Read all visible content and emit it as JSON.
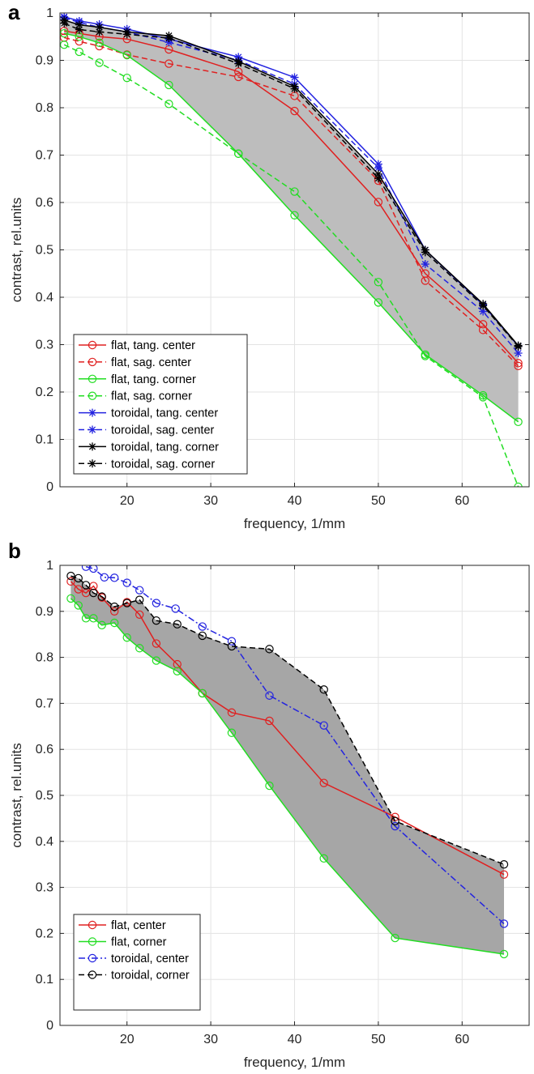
{
  "chart_data": [
    {
      "panel_label": "a",
      "type": "line",
      "xlabel": "frequency, 1/mm",
      "ylabel": "contrast, rel.units",
      "xlim": [
        12,
        68
      ],
      "ylim": [
        0,
        1
      ],
      "xticks": [
        20,
        30,
        40,
        50,
        60
      ],
      "yticks": [
        0,
        0.1,
        0.2,
        0.3,
        0.4,
        0.5,
        0.6,
        0.7,
        0.8,
        0.9,
        1
      ],
      "ytick_labels": [
        "0",
        "0.1",
        "0.2",
        "0.3",
        "0.4",
        "0.5",
        "0.6",
        "0.7",
        "0.8",
        "0.9",
        "1"
      ],
      "grid": true,
      "legend_position": "bottom-left",
      "shaded_region": {
        "upper": "toroidal, tang. corner",
        "lower": "flat, tang. corner",
        "color": "#bdbdbd"
      },
      "x": [
        12.5,
        14.3,
        16.7,
        20,
        25,
        33.3,
        40,
        50,
        55.6,
        62.5,
        66.7
      ],
      "series": [
        {
          "name": "flat, tang. center",
          "color": "#e02020",
          "dash": "solid",
          "marker": "circle",
          "values": [
            0.962,
            0.957,
            0.95,
            0.945,
            0.923,
            0.876,
            0.793,
            0.601,
            0.45,
            0.343,
            0.261
          ]
        },
        {
          "name": "flat, sag. center",
          "color": "#e02020",
          "dash": "dashed",
          "marker": "circle",
          "values": [
            0.948,
            0.94,
            0.93,
            0.912,
            0.893,
            0.865,
            0.825,
            0.646,
            0.435,
            0.331,
            0.255
          ]
        },
        {
          "name": "flat, tang. corner",
          "color": "#22dd22",
          "dash": "solid",
          "marker": "circle",
          "values": [
            0.957,
            0.95,
            0.937,
            0.911,
            0.848,
            0.703,
            0.573,
            0.389,
            0.279,
            0.193,
            0.137
          ]
        },
        {
          "name": "flat, sag. corner",
          "color": "#22dd22",
          "dash": "dashed",
          "marker": "circle",
          "values": [
            0.933,
            0.918,
            0.895,
            0.863,
            0.808,
            0.703,
            0.623,
            0.432,
            0.276,
            0.189,
            0.0
          ]
        },
        {
          "name": "toroidal, tang. center",
          "color": "#2323e0",
          "dash": "solid",
          "marker": "star",
          "values": [
            0.992,
            0.983,
            0.976,
            0.966,
            0.945,
            0.907,
            0.864,
            0.681,
            0.5,
            0.384,
            0.297
          ]
        },
        {
          "name": "toroidal, sag. center",
          "color": "#2323e0",
          "dash": "dashed",
          "marker": "star",
          "values": [
            0.99,
            0.98,
            0.97,
            0.96,
            0.938,
            0.9,
            0.85,
            0.673,
            0.47,
            0.37,
            0.282
          ]
        },
        {
          "name": "toroidal, tang. corner",
          "color": "#000000",
          "dash": "solid",
          "marker": "star",
          "values": [
            0.985,
            0.975,
            0.97,
            0.96,
            0.952,
            0.898,
            0.845,
            0.66,
            0.5,
            0.386,
            0.298
          ]
        },
        {
          "name": "toroidal, sag. corner",
          "color": "#000000",
          "dash": "dashed",
          "marker": "star",
          "values": [
            0.978,
            0.965,
            0.96,
            0.955,
            0.947,
            0.893,
            0.84,
            0.651,
            0.495,
            0.382,
            0.296
          ]
        }
      ]
    },
    {
      "panel_label": "b",
      "type": "line",
      "xlabel": "frequency, 1/mm",
      "ylabel": "contrast, rel.units",
      "xlim": [
        12,
        68
      ],
      "ylim": [
        0,
        1
      ],
      "xticks": [
        20,
        30,
        40,
        50,
        60
      ],
      "yticks": [
        0,
        0.1,
        0.2,
        0.3,
        0.4,
        0.5,
        0.6,
        0.7,
        0.8,
        0.9,
        1
      ],
      "ytick_labels": [
        "0",
        "0.1",
        "0.2",
        "0.3",
        "0.4",
        "0.5",
        "0.6",
        "0.7",
        "0.8",
        "0.9",
        "1"
      ],
      "grid": true,
      "legend_position": "bottom-left",
      "shaded_region": {
        "upper": "toroidal, corner",
        "lower": "flat, corner",
        "color": "#a6a6a6"
      },
      "series": [
        {
          "name": "flat, center",
          "color": "#e02020",
          "dash": "solid",
          "marker": "circle",
          "x": [
            13.3,
            14.2,
            15.1,
            16,
            17,
            18.5,
            20,
            21.5,
            23.5,
            26,
            29,
            32.5,
            37,
            43.5,
            52,
            65
          ],
          "values": [
            0.965,
            0.948,
            0.94,
            0.955,
            0.93,
            0.9,
            0.92,
            0.893,
            0.83,
            0.785,
            0.722,
            0.68,
            0.662,
            0.527,
            0.453,
            0.328
          ]
        },
        {
          "name": "flat, corner",
          "color": "#22dd22",
          "dash": "solid",
          "marker": "circle",
          "x": [
            13.3,
            14.2,
            15.1,
            16,
            17,
            18.5,
            20,
            21.5,
            23.5,
            26,
            29,
            32.5,
            37,
            43.5,
            52,
            65
          ],
          "values": [
            0.928,
            0.913,
            0.885,
            0.885,
            0.87,
            0.875,
            0.843,
            0.82,
            0.793,
            0.77,
            0.722,
            0.636,
            0.521,
            0.363,
            0.19,
            0.155
          ]
        },
        {
          "name": "toroidal, center",
          "color": "#2323e0",
          "dash": "dashdot",
          "marker": "circle",
          "x": [
            15.1,
            16,
            17.3,
            18.5,
            20,
            21.5,
            23.5,
            25.8,
            29,
            32.5,
            37,
            43.5,
            52,
            65
          ],
          "values": [
            0.997,
            0.993,
            0.974,
            0.973,
            0.962,
            0.946,
            0.918,
            0.906,
            0.867,
            0.835,
            0.717,
            0.652,
            0.433,
            0.221
          ]
        },
        {
          "name": "toroidal, corner",
          "color": "#000000",
          "dash": "dashed",
          "marker": "circle",
          "x": [
            13.3,
            14.2,
            15.1,
            16,
            17,
            18.5,
            20,
            21.5,
            23.5,
            26,
            29,
            32.5,
            37,
            43.5,
            52,
            65
          ],
          "values": [
            0.977,
            0.972,
            0.957,
            0.94,
            0.932,
            0.91,
            0.918,
            0.925,
            0.88,
            0.872,
            0.847,
            0.824,
            0.818,
            0.73,
            0.444,
            0.35
          ]
        }
      ]
    }
  ]
}
